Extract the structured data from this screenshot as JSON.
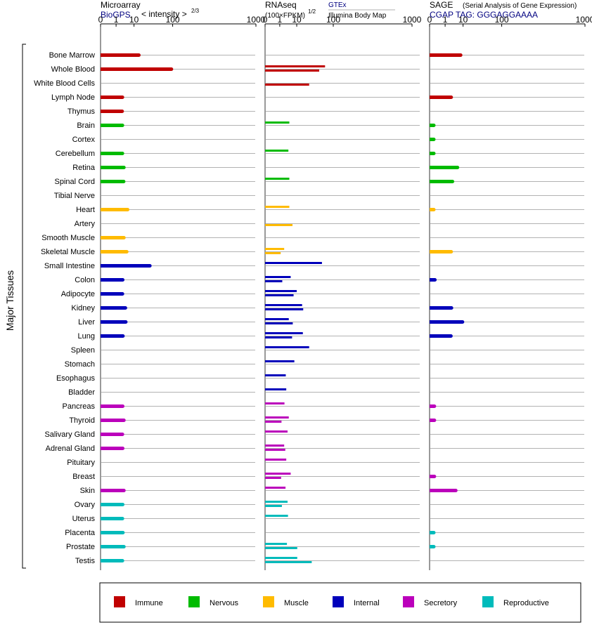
{
  "panels": [
    {
      "title": "Microarray",
      "subtitle": "BioGPS",
      "scale_note": "< intensity >",
      "scale_exp": "2/3"
    },
    {
      "title": "RNAseq",
      "subtitle": "(100×FPKM)",
      "scale_exp": "1/2",
      "source_top": "GTEx",
      "source_bottom": "Illumina Body Map"
    },
    {
      "title": "SAGE",
      "title_note": "(Serial Analysis of Gene Expression)",
      "subtitle": "CGAP TAG: GGGAGGAAAA"
    }
  ],
  "y_axis_label": "Major Tissues",
  "tick_labels": [
    "0",
    "1",
    "10",
    "100",
    "1000"
  ],
  "legend": [
    {
      "name": "Immune",
      "color": "#c00000"
    },
    {
      "name": "Nervous",
      "color": "#00bb00"
    },
    {
      "name": "Muscle",
      "color": "#ffbb00"
    },
    {
      "name": "Internal",
      "color": "#0000bb"
    },
    {
      "name": "Secretory",
      "color": "#bb00bb"
    },
    {
      "name": "Reproductive",
      "color": "#00bbbb"
    }
  ],
  "chart_data": {
    "type": "bar",
    "scale": "power",
    "xlim": [
      0,
      1000
    ],
    "tick_values": [
      0,
      1,
      10,
      100,
      1000
    ],
    "categories": [
      "Bone Marrow",
      "Whole Blood",
      "White Blood Cells",
      "Lymph Node",
      "Thymus",
      "Brain",
      "Cortex",
      "Cerebellum",
      "Retina",
      "Spinal Cord",
      "Tibial Nerve",
      "Heart",
      "Artery",
      "Smooth Muscle",
      "Skeletal Muscle",
      "Small Intestine",
      "Colon",
      "Adipocyte",
      "Kidney",
      "Liver",
      "Lung",
      "Spleen",
      "Stomach",
      "Esophagus",
      "Bladder",
      "Pancreas",
      "Thyroid",
      "Salivary Gland",
      "Adrenal Gland",
      "Pituitary",
      "Breast",
      "Skin",
      "Ovary",
      "Uterus",
      "Placenta",
      "Prostate",
      "Testis"
    ],
    "groups": [
      "Immune",
      "Immune",
      "Immune",
      "Immune",
      "Immune",
      "Nervous",
      "Nervous",
      "Nervous",
      "Nervous",
      "Nervous",
      "Nervous",
      "Muscle",
      "Muscle",
      "Muscle",
      "Muscle",
      "Internal",
      "Internal",
      "Internal",
      "Internal",
      "Internal",
      "Internal",
      "Internal",
      "Internal",
      "Internal",
      "Internal",
      "Secretory",
      "Secretory",
      "Secretory",
      "Secretory",
      "Secretory",
      "Secretory",
      "Secretory",
      "Reproductive",
      "Reproductive",
      "Reproductive",
      "Reproductive",
      "Reproductive"
    ],
    "series": [
      {
        "values": [
          15.0,
          95.0,
          null,
          2.8,
          2.7,
          2.8,
          null,
          2.8,
          3.4,
          3.3,
          null,
          5.3,
          null,
          3.4,
          4.8,
          32.0,
          2.9,
          2.8,
          4.1,
          4.3,
          3.0,
          null,
          null,
          null,
          null,
          2.9,
          3.4,
          2.8,
          2.9,
          null,
          null,
          3.4,
          2.9,
          2.8,
          3.0,
          3.4,
          2.8
        ]
      },
      {
        "values": [
          null,
          68.0,
          null,
          null,
          null,
          4.5,
          null,
          4.0,
          null,
          4.5,
          null,
          4.5,
          null,
          null,
          2.2,
          58.0,
          5.3,
          10.0,
          16.0,
          4.2,
          17.0,
          27.0,
          7.9,
          2.8,
          3.0,
          2.3,
          4.2,
          3.6,
          2.2,
          3.0,
          5.3,
          2.7,
          3.6,
          3.8,
          null,
          3.3,
          10.5
        ]
      },
      {
        "values": [
          null,
          50.0,
          27.0,
          null,
          null,
          null,
          null,
          null,
          null,
          null,
          null,
          null,
          6.5,
          null,
          1.2,
          null,
          1.6,
          7.3,
          17.5,
          6.7,
          6.2,
          null,
          null,
          null,
          null,
          null,
          1.4,
          null,
          2.6,
          null,
          1.3,
          null,
          1.5,
          null,
          null,
          10.5,
          32.0
        ]
      },
      {
        "values": [
          8.0,
          null,
          null,
          2.7,
          null,
          0.02,
          0.02,
          0.02,
          5.8,
          3.2,
          null,
          0.02,
          null,
          null,
          2.7,
          null,
          0.04,
          null,
          2.8,
          9.5,
          2.6,
          null,
          null,
          null,
          null,
          0.03,
          0.03,
          null,
          null,
          null,
          0.03,
          4.8,
          null,
          null,
          0.02,
          0.02,
          null
        ]
      }
    ]
  }
}
